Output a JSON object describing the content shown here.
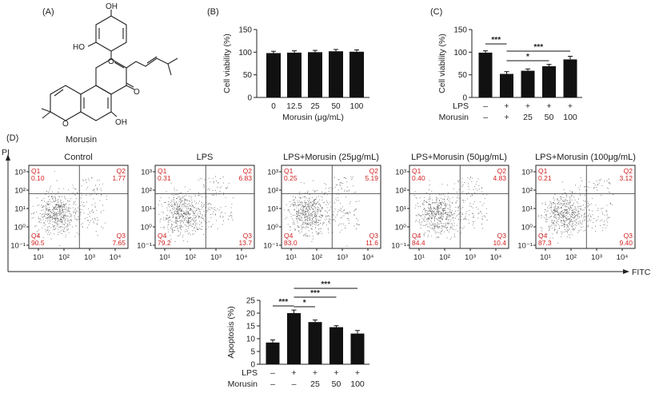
{
  "panel_labels": {
    "a": "(A)",
    "b": "(B)",
    "c": "(C)",
    "d": "(D)"
  },
  "molecule": {
    "name": "Morusin",
    "atoms": {
      "oh_top": "OH",
      "ho_left": "HO",
      "oh_bottom": "OH",
      "ring_o": "O",
      "pyran_o": "O",
      "carbonyl_o": "O"
    }
  },
  "chart_data": [
    {
      "id": "B",
      "type": "bar",
      "categories": [
        "0",
        "12.5",
        "25",
        "50",
        "100"
      ],
      "values": [
        98,
        99,
        100,
        102,
        101
      ],
      "errors": [
        4,
        4,
        4,
        4,
        4
      ],
      "ylabel": "Cell viability (%)",
      "xlabel": "Morusin (μg/mL)",
      "ylim": [
        0,
        150
      ],
      "yticks": [
        "0",
        "50",
        "100",
        "150"
      ],
      "grid": false
    },
    {
      "id": "C",
      "type": "bar",
      "values": [
        99,
        52,
        59,
        69,
        84
      ],
      "errors": [
        4,
        5,
        4,
        4,
        7
      ],
      "ylabel": "Cell viability (%)",
      "ylim": [
        0,
        150
      ],
      "yticks": [
        "0",
        "50",
        "100",
        "150"
      ],
      "rows": [
        {
          "label": "LPS",
          "values": [
            "–",
            "+",
            "+",
            "+",
            "+"
          ]
        },
        {
          "label": "Morusin",
          "values": [
            "–",
            "+",
            "25",
            "50",
            "100"
          ]
        }
      ],
      "significance": [
        {
          "from": 0,
          "to": 1,
          "label": "***"
        },
        {
          "from": 1,
          "to": 3,
          "label": "*"
        },
        {
          "from": 1,
          "to": 4,
          "label": "***"
        }
      ],
      "grid": false
    },
    {
      "id": "D-flow",
      "type": "scatter",
      "xlabel": "FITC",
      "ylabel": "PI",
      "xticks": [
        "10¹",
        "10²",
        "10³",
        "10⁴"
      ],
      "yticks": [
        "10³",
        "10²",
        "10¹",
        "10⁰",
        "10⁻¹"
      ],
      "plots": [
        {
          "title": "Control",
          "q1": "0.10",
          "q2": "1.77",
          "q3": "7.65",
          "q4": "90.5"
        },
        {
          "title": "LPS",
          "q1": "0.31",
          "q2": "6.83",
          "q3": "13.7",
          "q4": "79.2"
        },
        {
          "title": "LPS+Morusin (25μg/mL)",
          "q1": "0.25",
          "q2": "5.19",
          "q3": "11.6",
          "q4": "83.0"
        },
        {
          "title": "LPS+Morusin (50μg/mL)",
          "q1": "0.40",
          "q2": "4.83",
          "q3": "10.4",
          "q4": "84.4"
        },
        {
          "title": "LPS+Morusin (100μg/mL)",
          "q1": "0.21",
          "q2": "3.12",
          "q3": "9.40",
          "q4": "87.3"
        }
      ],
      "quadrant_labels": {
        "q1": "Q1",
        "q2": "Q2",
        "q3": "Q3",
        "q4": "Q4"
      }
    },
    {
      "id": "D-apoptosis",
      "type": "bar",
      "values": [
        8.5,
        20,
        16.5,
        14.5,
        12
      ],
      "errors": [
        1,
        1.2,
        0.8,
        0.6,
        1.2
      ],
      "ylabel": "Apoptosis (%)",
      "ylim": [
        0,
        25
      ],
      "yticks": [
        "0",
        "5",
        "10",
        "15",
        "20",
        "25"
      ],
      "rows": [
        {
          "label": "LPS",
          "values": [
            "–",
            "+",
            "+",
            "+",
            "+"
          ]
        },
        {
          "label": "Morusin",
          "values": [
            "–",
            "–",
            "25",
            "50",
            "100"
          ]
        }
      ],
      "significance": [
        {
          "from": 0,
          "to": 1,
          "label": "***"
        },
        {
          "from": 1,
          "to": 2,
          "label": "*"
        },
        {
          "from": 1,
          "to": 3,
          "label": "***"
        },
        {
          "from": 1,
          "to": 4,
          "label": "***"
        }
      ],
      "grid": false
    }
  ]
}
